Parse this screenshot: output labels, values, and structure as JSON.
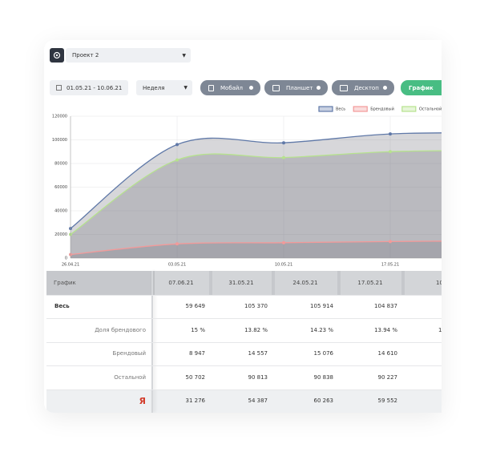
{
  "toolbar": {
    "project": "Проект 2"
  },
  "filters": {
    "date_range": "01.05.21 - 10.06.21",
    "period": "Неделя",
    "devices": [
      "Мобайл",
      "Планшет",
      "Десктоп"
    ],
    "view": "График"
  },
  "chart_data": {
    "type": "line",
    "area": true,
    "categories": [
      "26.04.21",
      "03.05.21",
      "10.05.21",
      "17.05.21",
      null
    ],
    "series": [
      {
        "name": "Весь",
        "color": "#6079a8",
        "values": [
          25000,
          96000,
          97500,
          105000,
          106000
        ]
      },
      {
        "name": "Брендовый",
        "color": "#f29a9a",
        "values": [
          3000,
          12000,
          13000,
          14000,
          14500
        ]
      },
      {
        "name": "Остальной",
        "color": "#b6e28e",
        "values": [
          20000,
          83000,
          85000,
          90000,
          91000
        ]
      }
    ],
    "ylim": [
      0,
      120000
    ],
    "yticks": [
      0,
      20000,
      40000,
      60000,
      80000,
      100000,
      120000
    ],
    "grid": true,
    "legend": "top-right"
  },
  "table": {
    "header": [
      "График",
      "07.06.21",
      "31.05.21",
      "24.05.21",
      "17.05.21",
      "10"
    ],
    "rows": [
      [
        "Весь",
        "59 649",
        "105 370",
        "105 914",
        "104 837"
      ],
      [
        "Доля брендового",
        "15 %",
        "13.82 %",
        "14.23 %",
        "13.94 %",
        "1"
      ],
      [
        "Брендовый",
        "8 947",
        "14 557",
        "15 076",
        "14 610"
      ],
      [
        "Остальной",
        "50 702",
        "90 813",
        "90 838",
        "90 227"
      ],
      [
        "Я",
        "31 276",
        "54 387",
        "60 263",
        "59 552"
      ]
    ]
  }
}
